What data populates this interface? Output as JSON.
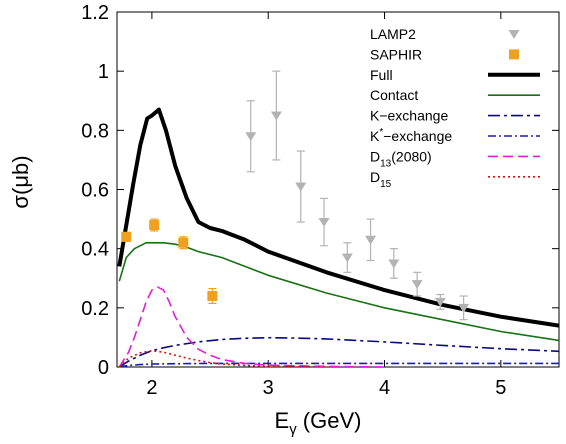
{
  "chart_data": {
    "type": "line",
    "title": "",
    "xlabel": {
      "main": "E",
      "sub": "γ",
      "rest": " (GeV)"
    },
    "ylabel": "σ(μb)",
    "xlim": [
      1.7,
      5.5
    ],
    "ylim": [
      0,
      1.2
    ],
    "x_ticks": [
      2,
      3,
      4,
      5
    ],
    "x_tick_labels": [
      "2",
      "3",
      "4",
      "5"
    ],
    "y_ticks": [
      0,
      0.2,
      0.4,
      0.6,
      0.8,
      1,
      1.2
    ],
    "y_tick_labels": [
      "0",
      "0.2",
      "0.4",
      "0.6",
      "0.8",
      "1",
      "1.2"
    ],
    "legend_position": "top-right",
    "data_series": [
      {
        "name": "LAMP2",
        "kind": "points",
        "marker": "triangle-down",
        "color": "#b3b3b3",
        "points": [
          {
            "x": 2.85,
            "y": 0.78,
            "yerr": 0.12
          },
          {
            "x": 3.07,
            "y": 0.85,
            "yerr": 0.15
          },
          {
            "x": 3.28,
            "y": 0.61,
            "yerr": 0.12
          },
          {
            "x": 3.48,
            "y": 0.49,
            "yerr": 0.08
          },
          {
            "x": 3.68,
            "y": 0.37,
            "yerr": 0.05
          },
          {
            "x": 3.88,
            "y": 0.43,
            "yerr": 0.07
          },
          {
            "x": 4.08,
            "y": 0.35,
            "yerr": 0.05
          },
          {
            "x": 4.28,
            "y": 0.28,
            "yerr": 0.04
          },
          {
            "x": 4.48,
            "y": 0.22,
            "yerr": 0.025
          },
          {
            "x": 4.68,
            "y": 0.2,
            "yerr": 0.04
          }
        ]
      },
      {
        "name": "SAPHIR",
        "kind": "points",
        "marker": "square",
        "color": "#f0a020",
        "points": [
          {
            "x": 1.78,
            "y": 0.44,
            "yerr": 0.015
          },
          {
            "x": 2.02,
            "y": 0.48,
            "yerr": 0.02
          },
          {
            "x": 2.27,
            "y": 0.42,
            "yerr": 0.02
          },
          {
            "x": 2.52,
            "y": 0.24,
            "yerr": 0.025
          }
        ]
      }
    ],
    "series": [
      {
        "name": "Full",
        "color": "#000000",
        "dash": "",
        "width": 4,
        "x": [
          1.72,
          1.78,
          1.84,
          1.9,
          1.96,
          2.0,
          2.06,
          2.12,
          2.2,
          2.3,
          2.4,
          2.5,
          2.6,
          2.8,
          3.0,
          3.5,
          4.0,
          4.5,
          5.0,
          5.5
        ],
        "y": [
          0.34,
          0.48,
          0.62,
          0.75,
          0.84,
          0.85,
          0.87,
          0.8,
          0.68,
          0.57,
          0.49,
          0.47,
          0.46,
          0.43,
          0.39,
          0.32,
          0.26,
          0.21,
          0.17,
          0.14
        ]
      },
      {
        "name": "Contact",
        "color": "#1a7015",
        "dash": "",
        "width": 1.6,
        "x": [
          1.72,
          1.78,
          1.85,
          1.9,
          1.95,
          2.0,
          2.05,
          2.1,
          2.2,
          2.3,
          2.4,
          2.6,
          2.8,
          3.0,
          3.5,
          4.0,
          4.5,
          5.0,
          5.5
        ],
        "y": [
          0.29,
          0.37,
          0.4,
          0.41,
          0.42,
          0.42,
          0.42,
          0.42,
          0.415,
          0.405,
          0.39,
          0.37,
          0.34,
          0.31,
          0.25,
          0.2,
          0.16,
          0.12,
          0.09
        ]
      },
      {
        "name": "K−exchange",
        "color": "#0a0a80",
        "dash": "12,4,3,4",
        "width": 1.6,
        "x": [
          1.72,
          1.8,
          1.9,
          2.0,
          2.1,
          2.2,
          2.4,
          2.6,
          2.8,
          3.0,
          3.2,
          3.5,
          4.0,
          4.5,
          5.0,
          5.5
        ],
        "y": [
          0.0,
          0.02,
          0.04,
          0.055,
          0.065,
          0.073,
          0.085,
          0.093,
          0.097,
          0.099,
          0.098,
          0.095,
          0.085,
          0.073,
          0.062,
          0.053
        ]
      },
      {
        "name": "K*−exchange",
        "color": "#1a1ab0",
        "dash": "8,3,2,3",
        "width": 1.6,
        "x": [
          1.72,
          1.8,
          1.9,
          2.0,
          2.2,
          2.5,
          3.0,
          3.5,
          4.0,
          4.5,
          5.0,
          5.5
        ],
        "y": [
          0.0,
          0.005,
          0.008,
          0.01,
          0.011,
          0.012,
          0.012,
          0.012,
          0.012,
          0.012,
          0.012,
          0.012
        ]
      },
      {
        "name": "D13(2080)",
        "name_main": "D",
        "name_sub": "13",
        "name_rest": "(2080)",
        "color": "#e020d0",
        "dash": "10,5",
        "width": 1.6,
        "x": [
          1.72,
          1.8,
          1.85,
          1.9,
          1.95,
          2.0,
          2.05,
          2.1,
          2.15,
          2.2,
          2.3,
          2.4,
          2.5,
          2.6,
          2.8,
          3.0,
          3.5,
          4.0
        ],
        "y": [
          0.0,
          0.05,
          0.1,
          0.16,
          0.22,
          0.26,
          0.27,
          0.26,
          0.22,
          0.17,
          0.1,
          0.06,
          0.04,
          0.025,
          0.012,
          0.006,
          0.002,
          0.0
        ]
      },
      {
        "name": "D15",
        "name_main": "D",
        "name_sub": "15",
        "name_rest": "",
        "color": "#dd1010",
        "dash": "2,3",
        "width": 1.6,
        "x": [
          1.72,
          1.8,
          1.9,
          2.0,
          2.1,
          2.2,
          2.3,
          2.4,
          2.5,
          2.6,
          2.8,
          3.0,
          3.5
        ],
        "y": [
          0.0,
          0.03,
          0.048,
          0.055,
          0.05,
          0.04,
          0.03,
          0.022,
          0.015,
          0.01,
          0.005,
          0.002,
          0.0
        ]
      }
    ]
  },
  "legend_entries": [
    {
      "key": "LAMP2",
      "main": "LAMP2",
      "sup": "",
      "sub": "",
      "rest": ""
    },
    {
      "key": "SAPHIR",
      "main": "SAPHIR",
      "sup": "",
      "sub": "",
      "rest": ""
    },
    {
      "key": "Full",
      "main": "Full",
      "sup": "",
      "sub": "",
      "rest": ""
    },
    {
      "key": "Contact",
      "main": "Contact",
      "sup": "",
      "sub": "",
      "rest": ""
    },
    {
      "key": "K−exchange",
      "main": "K−exchange",
      "sup": "",
      "sub": "",
      "rest": ""
    },
    {
      "key": "K*−exchange",
      "main": "K",
      "sup": "*",
      "sub": "",
      "rest": "−exchange"
    },
    {
      "key": "D13(2080)",
      "main": "D",
      "sup": "",
      "sub": "13",
      "rest": "(2080)"
    },
    {
      "key": "D15",
      "main": "D",
      "sup": "",
      "sub": "15",
      "rest": ""
    }
  ]
}
